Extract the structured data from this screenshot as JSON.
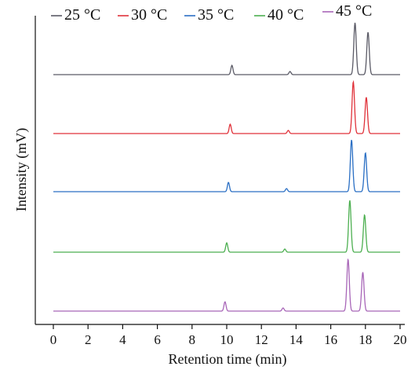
{
  "chart_data": {
    "type": "line",
    "title": "",
    "xlabel": "Retention time (min)",
    "ylabel": "Intensity (mV)",
    "xlim": [
      -1,
      20
    ],
    "xticks": [
      0,
      2,
      4,
      6,
      8,
      10,
      12,
      14,
      16,
      18,
      20
    ],
    "legend_position": "top",
    "grid": false,
    "y_axis_ticks": false,
    "series": [
      {
        "name": "25 °C",
        "color": "#5a5a66",
        "peaks": [
          {
            "x": 10.3,
            "height": 0.18
          },
          {
            "x": 13.65,
            "height": 0.06
          },
          {
            "x": 17.4,
            "height": 1.0
          },
          {
            "x": 18.15,
            "height": 0.82
          }
        ]
      },
      {
        "name": "30 °C",
        "color": "#e0323a",
        "peaks": [
          {
            "x": 10.2,
            "height": 0.18
          },
          {
            "x": 13.55,
            "height": 0.06
          },
          {
            "x": 17.3,
            "height": 1.0
          },
          {
            "x": 18.05,
            "height": 0.7
          }
        ]
      },
      {
        "name": "35 °C",
        "color": "#2a6fc4",
        "peaks": [
          {
            "x": 10.1,
            "height": 0.18
          },
          {
            "x": 13.45,
            "height": 0.06
          },
          {
            "x": 17.2,
            "height": 1.0
          },
          {
            "x": 18.0,
            "height": 0.75
          }
        ]
      },
      {
        "name": "40 °C",
        "color": "#4caf50",
        "peaks": [
          {
            "x": 10.0,
            "height": 0.18
          },
          {
            "x": 13.35,
            "height": 0.06
          },
          {
            "x": 17.1,
            "height": 1.0
          },
          {
            "x": 17.95,
            "height": 0.72
          }
        ]
      },
      {
        "name": "45 °C",
        "color": "#a866b8",
        "peaks": [
          {
            "x": 9.9,
            "height": 0.18
          },
          {
            "x": 13.25,
            "height": 0.06
          },
          {
            "x": 17.0,
            "height": 1.0
          },
          {
            "x": 17.85,
            "height": 0.75
          }
        ]
      }
    ]
  }
}
